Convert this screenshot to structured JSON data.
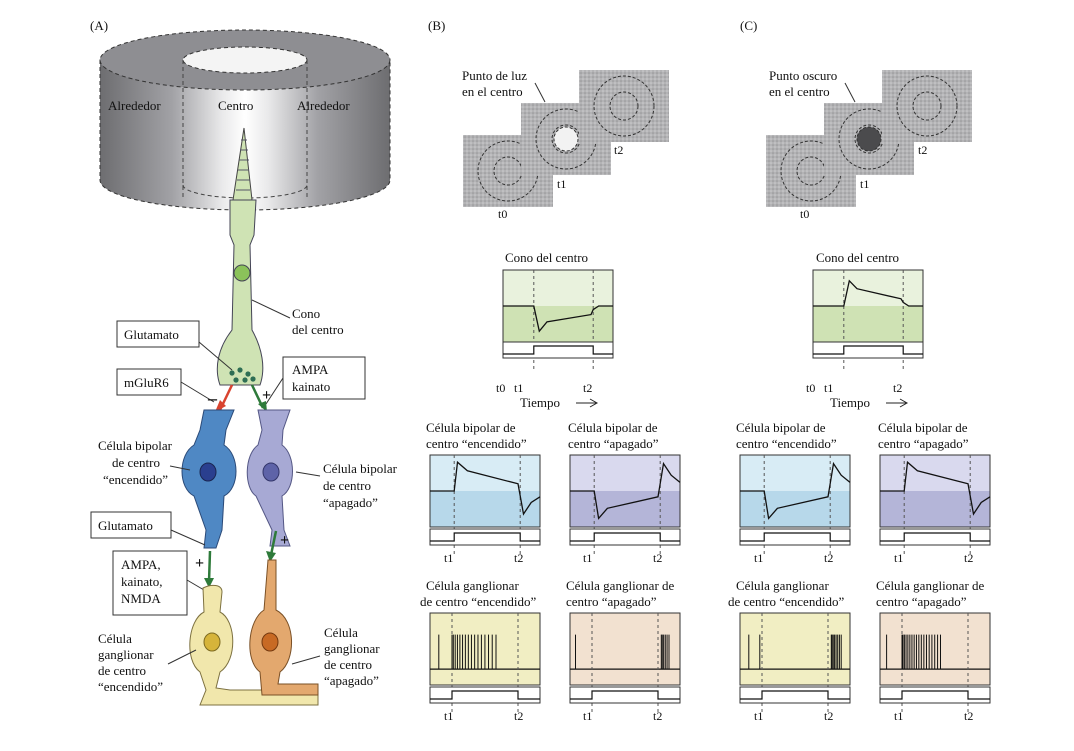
{
  "panel_a": {
    "letter": "(A)",
    "surround_left": "Alrededor",
    "center": "Centro",
    "surround_right": "Alrededor",
    "cone_label_1": "Cono",
    "cone_label_2": "del centro",
    "glutamate_top": "Glutamato",
    "mglur6": "mGluR6",
    "ampa_1": "AMPA",
    "ampa_2": "kainato",
    "minus_sign": "–",
    "plus_sign": "+",
    "bip_on_1": "Célula bipolar",
    "bip_on_2": "de centro",
    "bip_on_3": "“encendido”",
    "bip_off_1": "Célula bipolar",
    "bip_off_2": "de centro",
    "bip_off_3": "“apagado”",
    "glutamate_bottom": "Glutamato",
    "ampa_nmda_1": "AMPA,",
    "ampa_nmda_2": "kainato,",
    "ampa_nmda_3": "NMDA",
    "gang_on_1": "Célula",
    "gang_on_2": "ganglionar",
    "gang_on_3": "de centro",
    "gang_on_4": "“encendido”",
    "gang_off_1": "Célula",
    "gang_off_2": "ganglionar",
    "gang_off_3": "de centro",
    "gang_off_4": "“apagado”"
  },
  "panel_b": {
    "letter": "(B)",
    "spot_1": "Punto de luz",
    "spot_2": "en el centro",
    "t0": "t0",
    "t1": "t1",
    "t2": "t2",
    "cone_title": "Cono del centro",
    "time_label": "Tiempo",
    "bip_on_title_1": "Célula bipolar de",
    "bip_on_title_2": "centro “encendido”",
    "bip_off_title_1": "Célula bipolar de",
    "bip_off_title_2": "centro “apagado”",
    "gang_on_title_1": "Célula ganglionar",
    "gang_on_title_2": "de centro “encendido”",
    "gang_off_title_1": "Célula ganglionar de",
    "gang_off_title_2": "centro “apagado”"
  },
  "panel_c": {
    "letter": "(C)",
    "spot_1": "Punto oscuro",
    "spot_2": "en el centro",
    "t0": "t0",
    "t1": "t1",
    "t2": "t2",
    "cone_title": "Cono del centro",
    "time_label": "Tiempo",
    "bip_on_title_1": "Célula bipolar de",
    "bip_on_title_2": "centro “encendido”",
    "bip_off_title_1": "Célula bipolar de",
    "bip_off_title_2": "centro “apagado”",
    "gang_on_title_1": "Célula ganglionar",
    "gang_on_title_2": "de centro “encendido”",
    "gang_off_title_1": "Célula ganglionar de",
    "gang_off_title_2": "centro “apagado”"
  },
  "colors": {
    "cone": "#cfe3b4",
    "bip_on": "#4f88c4",
    "bip_off": "#a7a9d4",
    "gang_on": "#f1e7ac",
    "gang_off": "#e3a86e",
    "green_arrow": "#2e7a3a",
    "red_arrow": "#d9432f",
    "plot_cone": "#cfe2b4",
    "plot_bip_on": "#b7d8ea",
    "plot_bip_off": "#b4b5d8",
    "plot_gang_on": "#f1eec3",
    "plot_gang_off": "#f2e1d0"
  }
}
